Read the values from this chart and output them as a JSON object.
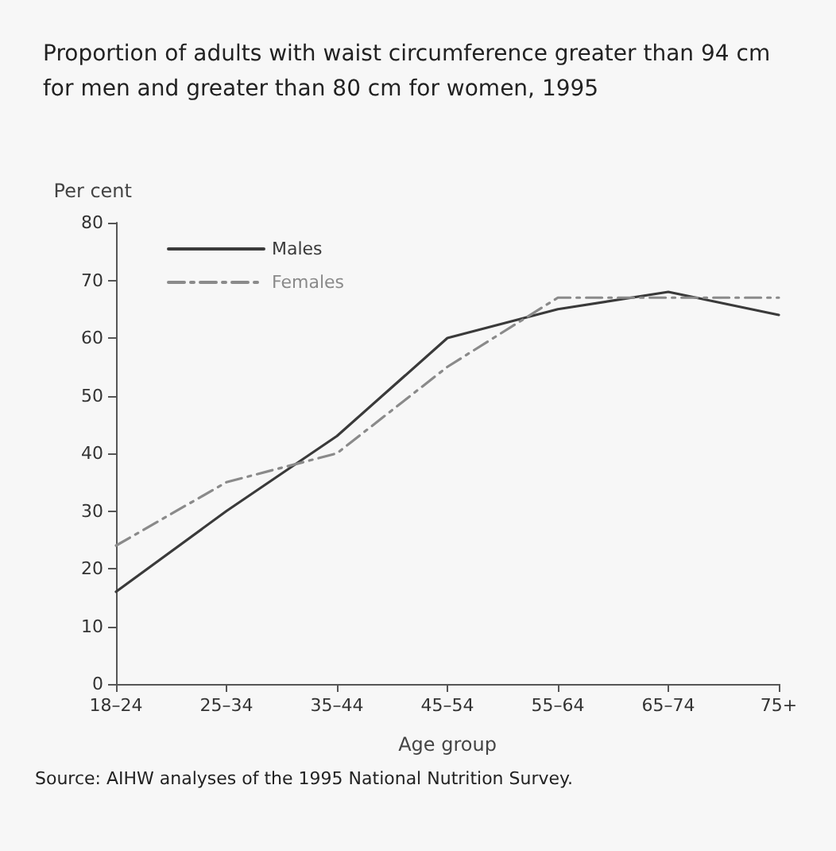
{
  "chart_data": {
    "type": "line",
    "title": "Proportion of adults with waist circumference greater than 94 cm for men and greater than 80 cm for women, 1995",
    "xlabel": "Age group",
    "ylabel": "Per cent",
    "categories": [
      "18–24",
      "25–34",
      "35–44",
      "45–54",
      "55–64",
      "65–74",
      "75+"
    ],
    "series": [
      {
        "name": "Males",
        "color": "#3a3a3a",
        "line_style": "solid",
        "values": [
          16,
          30,
          43,
          60,
          65,
          68,
          64
        ]
      },
      {
        "name": "Females",
        "color": "#8a8a8a",
        "line_style": "dashed",
        "values": [
          24,
          35,
          40,
          55,
          67,
          67,
          67
        ]
      }
    ],
    "ylim": [
      0,
      80
    ],
    "yticks": [
      0,
      10,
      20,
      30,
      40,
      50,
      60,
      70,
      80
    ],
    "grid": false,
    "legend": "top left",
    "marker": "none",
    "annotations": [
      "Source: AIHW analyses of the 1995 National Nutrition Survey."
    ]
  }
}
